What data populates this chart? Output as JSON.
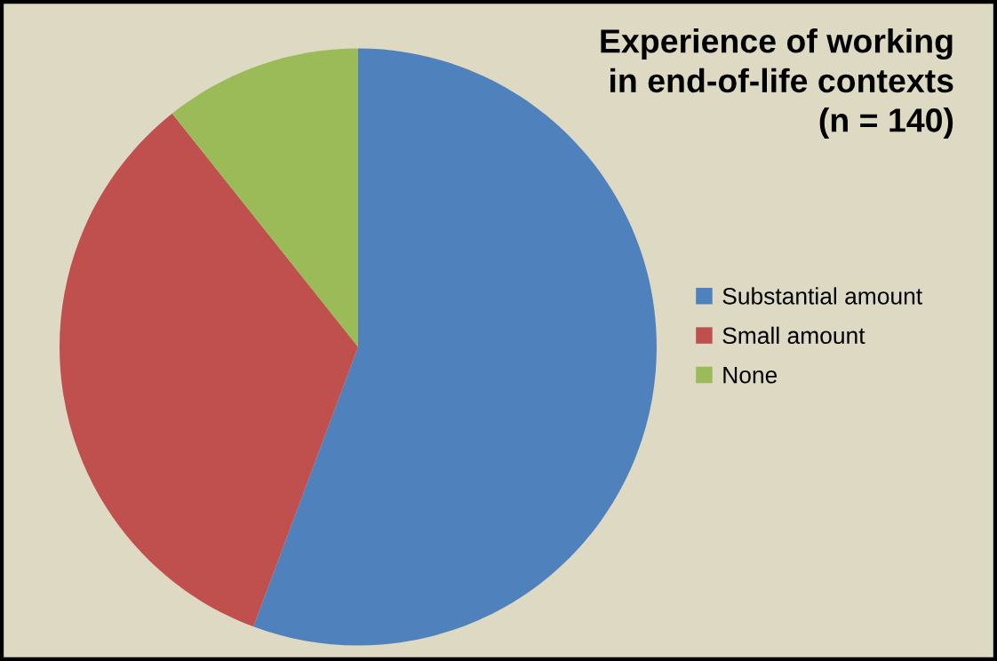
{
  "chart_data": {
    "type": "pie",
    "title": "Experience of working\nin end-of-life contexts\n(n = 140)",
    "categories": [
      "Substantial amount",
      "Small amount",
      "None"
    ],
    "values": [
      55.7,
      33.6,
      10.7
    ],
    "colors": [
      "#4f81bd",
      "#c0504d",
      "#9bbb59"
    ],
    "legend": "right"
  }
}
